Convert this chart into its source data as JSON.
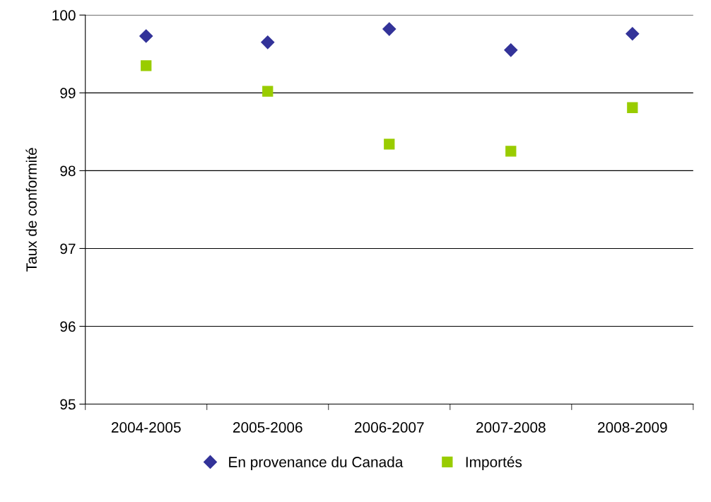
{
  "chart_data": {
    "type": "scatter",
    "ylabel": "Taux de conformité",
    "categories": [
      "2004-2005",
      "2005-2006",
      "2006-2007",
      "2007-2008",
      "2008-2009"
    ],
    "series": [
      {
        "name": "En provenance du Canada",
        "color": "#333399",
        "marker": "diamond",
        "values": [
          99.73,
          99.65,
          99.82,
          99.55,
          99.76
        ]
      },
      {
        "name": "Importés",
        "color": "#99cc00",
        "marker": "square",
        "values": [
          99.35,
          99.02,
          98.34,
          98.25,
          98.81
        ]
      }
    ],
    "ylim": [
      95,
      100
    ],
    "yticks": [
      95,
      96,
      97,
      98,
      99,
      100
    ],
    "grid": "y",
    "legend": "bottom"
  }
}
